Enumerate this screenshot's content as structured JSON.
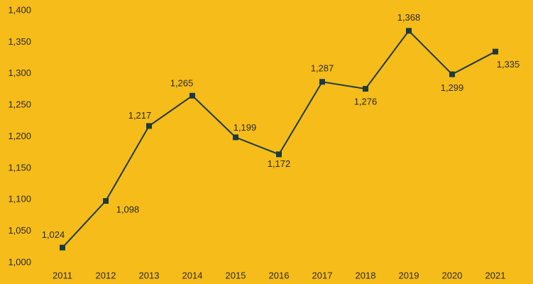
{
  "chart_data": {
    "type": "line",
    "categories": [
      "2011",
      "2012",
      "2013",
      "2014",
      "2015",
      "2016",
      "2017",
      "2018",
      "2019",
      "2020",
      "2021"
    ],
    "series": [
      {
        "color": "#1d3a3c",
        "values": [
          1024,
          1098,
          1217,
          1265,
          1199,
          1172,
          1287,
          1276,
          1368,
          1299,
          1335
        ],
        "value_labels": [
          "1,024",
          "1,098",
          "1,217",
          "1,265",
          "1,199",
          "1,172",
          "1,287",
          "1,276",
          "1,368",
          "1,299",
          "1,335"
        ]
      }
    ],
    "ylim": [
      1000,
      1400
    ],
    "yticks": [
      {
        "value": 1000,
        "label": "1,000"
      },
      {
        "value": 1050,
        "label": "1,050"
      },
      {
        "value": 1100,
        "label": "1,100"
      },
      {
        "value": 1150,
        "label": "1,150"
      },
      {
        "value": 1200,
        "label": "1,200"
      },
      {
        "value": 1250,
        "label": "1,250"
      },
      {
        "value": 1300,
        "label": "1,300"
      },
      {
        "value": 1350,
        "label": "1,350"
      },
      {
        "value": 1400,
        "label": "1,400"
      }
    ],
    "grid": false,
    "markers": "square"
  }
}
